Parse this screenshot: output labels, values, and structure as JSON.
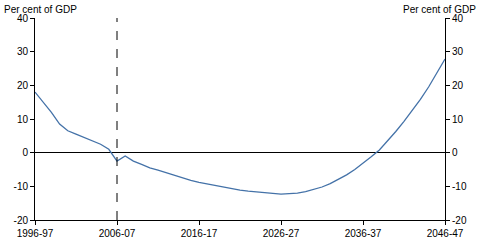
{
  "chart_data": {
    "type": "line",
    "y_label": "Per cent of GDP",
    "y2_label": "Per cent of GDP",
    "categories": [
      "1996-97",
      null,
      null,
      null,
      null,
      null,
      null,
      null,
      null,
      null,
      "2006-07",
      null,
      null,
      null,
      null,
      null,
      null,
      null,
      null,
      null,
      "2016-17",
      null,
      null,
      null,
      null,
      null,
      null,
      null,
      null,
      null,
      "2026-27",
      null,
      null,
      null,
      null,
      null,
      null,
      null,
      null,
      null,
      "2036-37",
      null,
      null,
      null,
      null,
      null,
      null,
      null,
      null,
      null,
      "2046-47"
    ],
    "values": [
      18,
      15,
      12,
      8.5,
      6.5,
      5.5,
      4.5,
      3.5,
      2.5,
      1,
      -2.5,
      -1,
      -2.5,
      -3.5,
      -4.5,
      -5.2,
      -6,
      -6.8,
      -7.5,
      -8.2,
      -8.8,
      -9.3,
      -9.8,
      -10.3,
      -10.8,
      -11.1,
      -11.4,
      -11.7,
      -11.9,
      -12.1,
      -12.3,
      -12.2,
      -12,
      -11.6,
      -11,
      -10.2,
      -9.2,
      -8,
      -6.6,
      -5,
      -3.2,
      -1.2,
      0.8,
      3.5,
      6.3,
      9.3,
      12.5,
      15.8,
      19.5,
      23.5,
      27.8
    ],
    "color": "#4472a8",
    "ylim": [
      -20,
      40
    ],
    "yticks": [
      -20,
      -10,
      0,
      10,
      20,
      30,
      40
    ],
    "y2lim": [
      -20,
      40
    ],
    "y2ticks": [
      -20,
      -10,
      0,
      10,
      20,
      30,
      40
    ],
    "reference_line": {
      "x": "2006-07",
      "line_style": "dashed"
    },
    "grid": false
  }
}
